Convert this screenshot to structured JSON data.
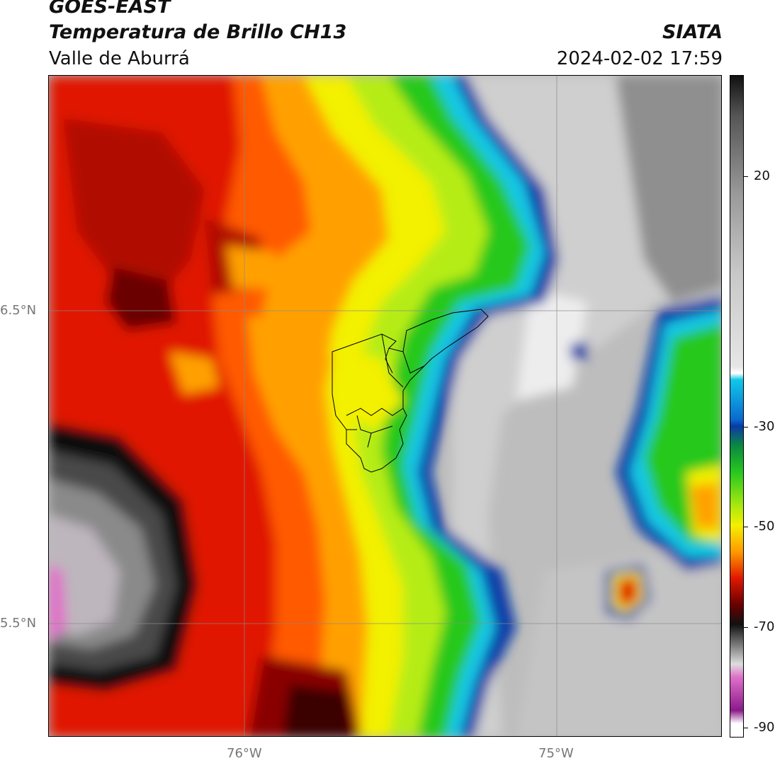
{
  "header": {
    "satellite": "GOES-EAST",
    "product": "Temperatura de Brillo CH13",
    "region": "Valle de Aburrá",
    "agency": "SIATA",
    "datetime": "2024-02-02 17:59"
  },
  "map": {
    "lat_labels": [
      "6.5°N",
      "5.5°N"
    ],
    "lon_labels": [
      "76°W",
      "75°W"
    ]
  },
  "colorbar": {
    "ticks": [
      "20",
      "-30",
      "-50",
      "-70",
      "-90"
    ],
    "colors": {
      "warm_gray": "#9a9a9a",
      "light_gray": "#e6e6e6",
      "cyan": "#10c8e8",
      "blue": "#0a3aa8",
      "green": "#27c81f",
      "yellow": "#f3f000",
      "orange": "#ff9a00",
      "red": "#e01800",
      "dark_red": "#6a0000",
      "black": "#111111",
      "pink": "#e070c8"
    }
  }
}
